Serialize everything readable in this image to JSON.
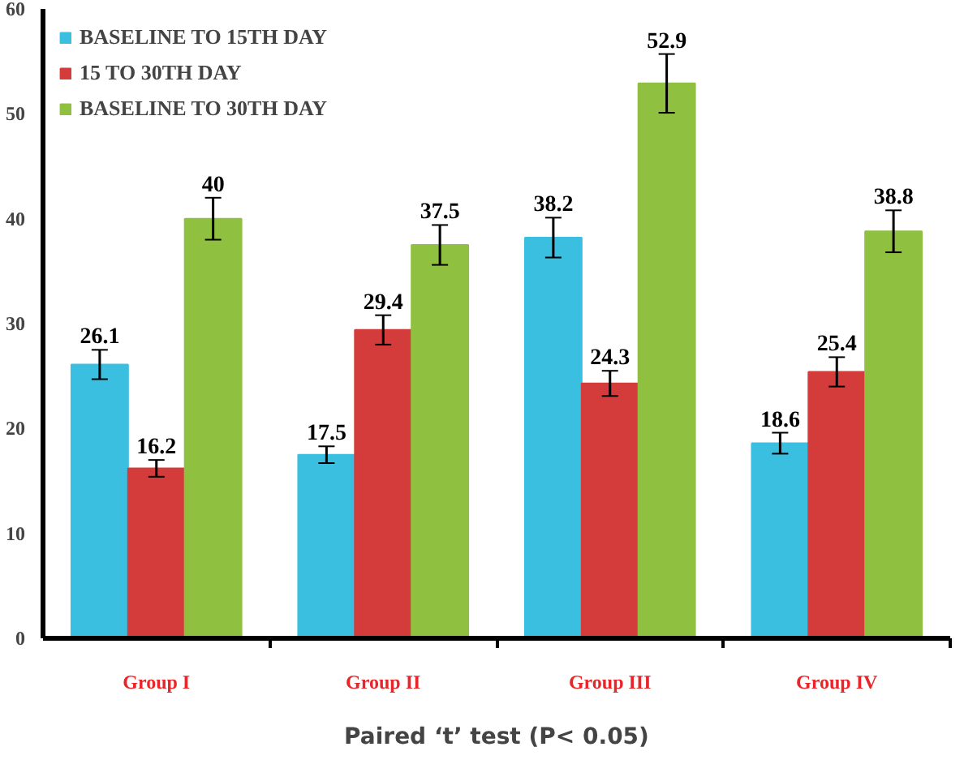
{
  "chart_data": {
    "type": "bar",
    "xlabel": "Paired ‘t’ test (P< 0.05)",
    "categories": [
      "Group I",
      "Group II",
      "Group III",
      "Group IV"
    ],
    "series": [
      {
        "name": "BASELINE TO 15TH DAY",
        "color": "#3bbfe0",
        "values": [
          26.1,
          17.5,
          38.2,
          18.6
        ],
        "errors": [
          1.4,
          0.8,
          1.9,
          1.0
        ]
      },
      {
        "name": "15 TO 30TH DAY",
        "color": "#d43c3c",
        "values": [
          16.2,
          29.4,
          24.3,
          25.4
        ],
        "errors": [
          0.8,
          1.4,
          1.2,
          1.4
        ]
      },
      {
        "name": "BASELINE TO 30TH DAY",
        "color": "#8fc040",
        "values": [
          40,
          37.5,
          52.9,
          38.8
        ],
        "errors": [
          2.0,
          1.9,
          2.8,
          2.0
        ]
      }
    ],
    "ylim": [
      0,
      60
    ],
    "yticks": [
      0,
      10,
      20,
      30,
      40,
      50,
      60
    ],
    "data_labels": true,
    "legend": "top left",
    "grid": false
  }
}
